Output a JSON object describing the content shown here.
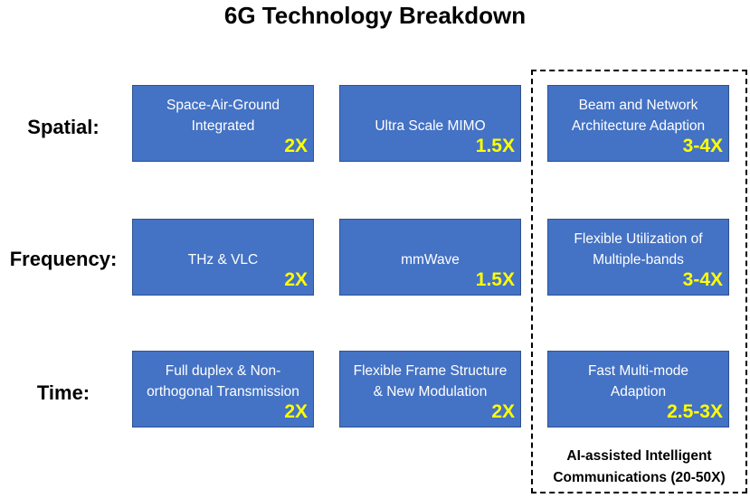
{
  "title": "6G Technology Breakdown",
  "rows": [
    {
      "label": "Spatial:"
    },
    {
      "label": "Frequency:"
    },
    {
      "label": "Time:"
    }
  ],
  "cells": [
    [
      {
        "text": "Space-Air-Ground\nIntegrated",
        "multiplier": "2X"
      },
      {
        "text": "Ultra Scale MIMO",
        "multiplier": "1.5X"
      },
      {
        "text": "Beam and Network\nArchitecture Adaption",
        "multiplier": "3-4X"
      }
    ],
    [
      {
        "text": "THz & VLC",
        "multiplier": "2X"
      },
      {
        "text": "mmWave",
        "multiplier": "1.5X"
      },
      {
        "text": "Flexible Utilization of\nMultiple-bands",
        "multiplier": "3-4X"
      }
    ],
    [
      {
        "text": "Full duplex & Non-\northogonal Transmission",
        "multiplier": "2X"
      },
      {
        "text": "Flexible Frame Structure\n& New Modulation",
        "multiplier": "2X"
      },
      {
        "text": "Fast Multi-mode\nAdaption",
        "multiplier": "2.5-3X"
      }
    ]
  ],
  "group": {
    "caption": "AI-assisted Intelligent\nCommunications (20-50X)"
  },
  "colors": {
    "box_fill": "#4472c4",
    "box_text": "#ffffff",
    "multiplier": "#ffff00"
  }
}
